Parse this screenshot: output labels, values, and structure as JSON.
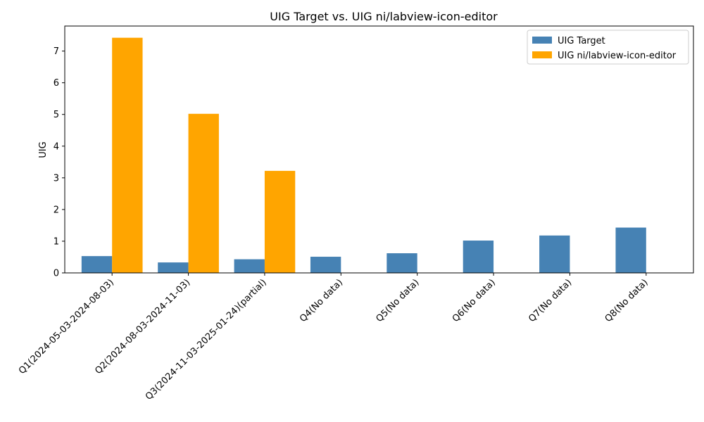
{
  "chart_data": {
    "type": "bar",
    "title": "UIG Target vs. UIG ni/labview-icon-editor",
    "xlabel": "",
    "ylabel": "UIG",
    "ylim": [
      0,
      7.79
    ],
    "yticks": [
      0,
      1,
      2,
      3,
      4,
      5,
      6,
      7
    ],
    "categories": [
      "Q1(2024-05-03-2024-08-03)",
      "Q2(2024-08-03-2024-11-03)",
      "Q3(2024-11-03-2025-01-24)(partial)",
      "Q4(No data)",
      "Q5(No data)",
      "Q6(No data)",
      "Q7(No data)",
      "Q8(No data)"
    ],
    "series": [
      {
        "name": "UIG Target",
        "color": "#4682b4",
        "values": [
          0.53,
          0.33,
          0.43,
          0.51,
          0.62,
          1.02,
          1.18,
          1.43
        ]
      },
      {
        "name": "UIG ni/labview-icon-editor",
        "color": "#ffa500",
        "values": [
          7.42,
          5.02,
          3.22,
          null,
          null,
          null,
          null,
          null
        ]
      }
    ],
    "legend": {
      "position": "top-right"
    },
    "grid": false
  }
}
